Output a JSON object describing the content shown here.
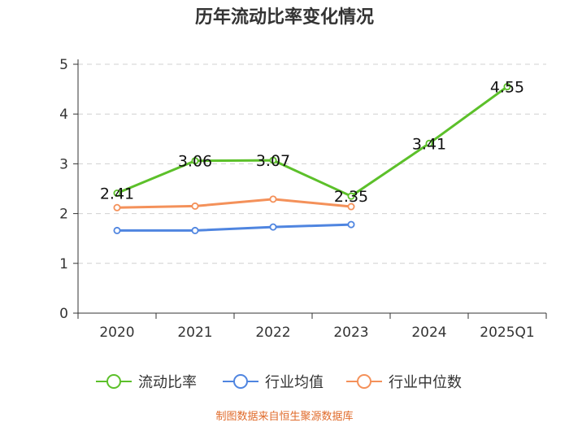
{
  "chart_data": {
    "type": "line",
    "title": "历年流动比率变化情况",
    "categories": [
      "2020",
      "2021",
      "2022",
      "2023",
      "2024",
      "2025Q1"
    ],
    "ylim": [
      0,
      5
    ],
    "yticks": [
      "0",
      "1",
      "2",
      "3",
      "4",
      "5"
    ],
    "grid": true,
    "legend_position": "bottom",
    "series": [
      {
        "name": "流动比率",
        "color": "#5cc02a",
        "values": [
          2.41,
          3.06,
          3.07,
          2.35,
          3.41,
          4.55
        ],
        "labels": [
          "2.41",
          "3.06",
          "3.07",
          "2.35",
          "3.41",
          "4.55"
        ]
      },
      {
        "name": "行业均值",
        "color": "#4f85e0",
        "values": [
          1.66,
          1.66,
          1.73,
          1.78,
          null,
          null
        ]
      },
      {
        "name": "行业中位数",
        "color": "#f4915a",
        "values": [
          2.12,
          2.15,
          2.29,
          2.14,
          null,
          null
        ]
      }
    ],
    "source": "制图数据来自恒生聚源数据库"
  }
}
